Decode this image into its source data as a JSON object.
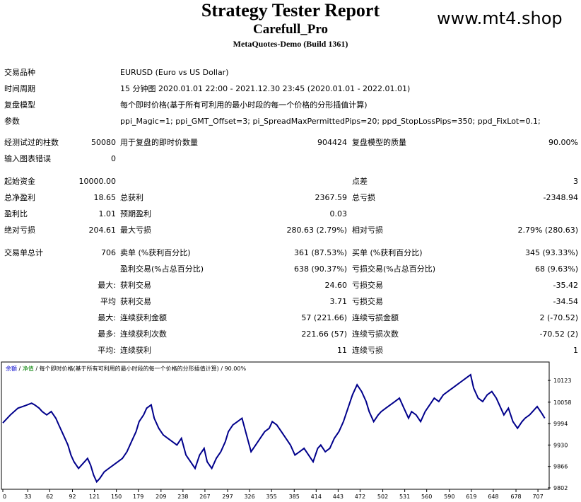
{
  "header": {
    "title": "Strategy Tester Report",
    "expert": "Carefull_Pro",
    "server": "MetaQuotes-Demo (Build 1361)",
    "watermark": "www.mt4.shop"
  },
  "info": [
    {
      "label": "交易品种",
      "value": "EURUSD (Euro vs US Dollar)"
    },
    {
      "label": "时间周期",
      "value": "15 分钟图 2020.01.01 22:00 - 2021.12.30 23:45 (2020.01.01 - 2022.01.01)"
    },
    {
      "label": "复盘模型",
      "value": "每个即时价格(基于所有可利用的最小时段的每一个价格的分形插值计算)"
    },
    {
      "label": "参数",
      "value": "ppi_Magic=1; ppi_GMT_Offset=3; pi_SpreadMaxPermittedPips=20; ppd_StopLossPips=350; ppd_FixLot=0.1;"
    }
  ],
  "bars_row": {
    "label": "经测试过的柱数",
    "value": "50080",
    "ticks_label": "用于复盘的即时价数量",
    "ticks_value": "904424",
    "quality_label": "复盘模型的质量",
    "quality_value": "90.00%"
  },
  "errors_row": {
    "label": "输入图表错误",
    "value": "0"
  },
  "stats": [
    {
      "l1": "起始资金",
      "v1": "10000.00",
      "l2": "",
      "v2": "",
      "l3": "点差",
      "v3": "3"
    },
    {
      "l1": "总净盈利",
      "v1": "18.65",
      "l2": "总获利",
      "v2": "2367.59",
      "l3": "总亏损",
      "v3": "-2348.94"
    },
    {
      "l1": "盈利比",
      "v1": "1.01",
      "l2": "预期盈利",
      "v2": "0.03",
      "l3": "",
      "v3": ""
    },
    {
      "l1": "绝对亏损",
      "v1": "204.61",
      "l2": "最大亏损",
      "v2": "280.63 (2.79%)",
      "l3": "相对亏损",
      "v3": "2.79% (280.63)"
    }
  ],
  "trades": [
    {
      "l1": "交易单总计",
      "v1": "706",
      "l2": "卖单 (%获利百分比)",
      "v2": "361 (87.53%)",
      "l3": "买单 (%获利百分比)",
      "v3": "345 (93.33%)"
    },
    {
      "l1": "",
      "v1": "",
      "l2": "盈利交易(%占总百分比)",
      "v2": "638 (90.37%)",
      "l3": "亏损交易(%占总百分比)",
      "v3": "68 (9.63%)"
    },
    {
      "l1": "",
      "v1": "最大:",
      "l2": "获利交易",
      "v2": "24.60",
      "l3": "亏损交易",
      "v3": "-35.42"
    },
    {
      "l1": "",
      "v1": "平均",
      "l2": "获利交易",
      "v2": "3.71",
      "l3": "亏损交易",
      "v3": "-34.54"
    },
    {
      "l1": "",
      "v1": "最大:",
      "l2": "连续获利金额",
      "v2": "57 (221.66)",
      "l3": "连续亏损金额",
      "v3": "2 (-70.52)"
    },
    {
      "l1": "",
      "v1": "最多:",
      "l2": "连续获利次数",
      "v2": "221.66 (57)",
      "l3": "连续亏损次数",
      "v3": "-70.52 (2)"
    },
    {
      "l1": "",
      "v1": "平均:",
      "l2": "连续获利",
      "v2": "11",
      "l3": "连续亏损",
      "v3": "1"
    }
  ],
  "chart_legend": {
    "balance": "余额",
    "sep1": " / ",
    "equity": "净值",
    "rest": " / 每个即时价格(基于所有可利用的最小时段的每一个价格的分形插值计算) / 90.00%"
  },
  "chart_data": {
    "type": "line",
    "x_ticks": [
      "0",
      "33",
      "62",
      "92",
      "121",
      "150",
      "179",
      "209",
      "238",
      "267",
      "297",
      "326",
      "355",
      "385",
      "414",
      "443",
      "472",
      "502",
      "531",
      "560",
      "590",
      "619",
      "648",
      "678",
      "707"
    ],
    "y_ticks": [
      "10123",
      "10058",
      "9994",
      "9930",
      "9866",
      "9802"
    ],
    "ylim": [
      9802,
      10140
    ],
    "xlim": [
      0,
      720
    ],
    "line_color": "#00008b",
    "series": [
      {
        "x": [
          0,
          10,
          20,
          30,
          38,
          42,
          48,
          52,
          58,
          64,
          70,
          74,
          80,
          86,
          90,
          94,
          100,
          106,
          112,
          116,
          120,
          124,
          128,
          134,
          140,
          146,
          152,
          158,
          164,
          170,
          176,
          180,
          186,
          190,
          196,
          200,
          206,
          212,
          218,
          224,
          230,
          236,
          242,
          248,
          254,
          260,
          266,
          270,
          276,
          282,
          288,
          294,
          298,
          304,
          310,
          316,
          322,
          328,
          334,
          340,
          346,
          352,
          356,
          362,
          368,
          374,
          380,
          386,
          392,
          398,
          404,
          410,
          416,
          420,
          426,
          432,
          438,
          444,
          450,
          456,
          462,
          468,
          474,
          480,
          484,
          490,
          496,
          500,
          506,
          512,
          518,
          524,
          530,
          536,
          540,
          546,
          552,
          558,
          564,
          570,
          576,
          582,
          588,
          594,
          600,
          606,
          612,
          618,
          622,
          628,
          634,
          640,
          646,
          652,
          658,
          662,
          668,
          674,
          680,
          686,
          690,
          696,
          700,
          706,
          712,
          716
        ],
        "y": [
          9996,
          10020,
          10040,
          10048,
          10055,
          10050,
          10040,
          10030,
          10020,
          10030,
          10010,
          9990,
          9960,
          9930,
          9900,
          9880,
          9860,
          9875,
          9890,
          9870,
          9840,
          9820,
          9830,
          9850,
          9860,
          9870,
          9880,
          9890,
          9910,
          9940,
          9970,
          10000,
          10020,
          10040,
          10050,
          10010,
          9980,
          9960,
          9950,
          9940,
          9930,
          9950,
          9900,
          9880,
          9860,
          9900,
          9920,
          9880,
          9860,
          9890,
          9910,
          9940,
          9970,
          9990,
          10000,
          10010,
          9960,
          9910,
          9930,
          9950,
          9970,
          9980,
          10000,
          9990,
          9970,
          9950,
          9930,
          9900,
          9910,
          9920,
          9900,
          9880,
          9920,
          9930,
          9910,
          9920,
          9950,
          9970,
          10000,
          10040,
          10080,
          10110,
          10090,
          10060,
          10030,
          10000,
          10020,
          10030,
          10040,
          10050,
          10060,
          10070,
          10040,
          10010,
          10030,
          10020,
          10000,
          10030,
          10050,
          10070,
          10060,
          10080,
          10090,
          10100,
          10110,
          10120,
          10130,
          10140,
          10100,
          10070,
          10060,
          10080,
          10090,
          10070,
          10040,
          10020,
          10040,
          10000,
          9980,
          10000,
          10010,
          10020,
          10030,
          10045,
          10025,
          10010
        ]
      }
    ]
  }
}
